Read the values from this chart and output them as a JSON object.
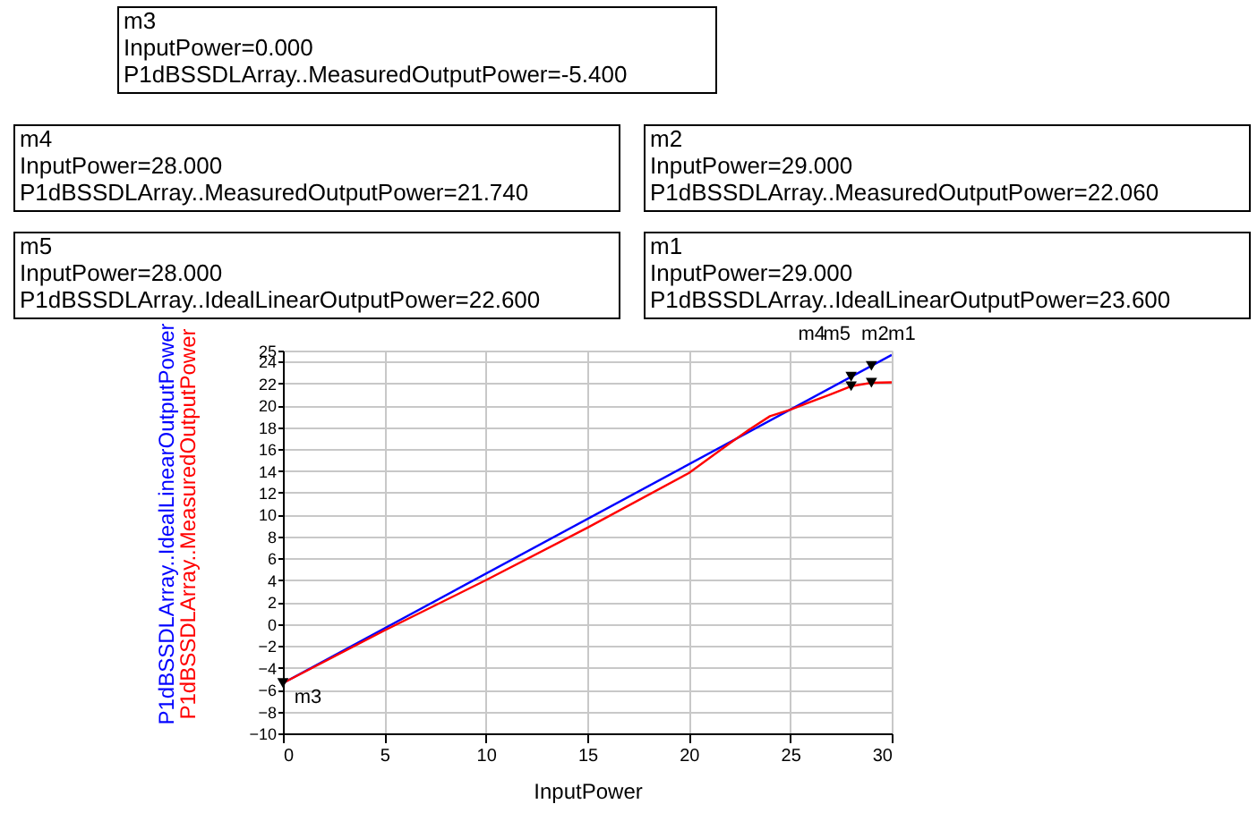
{
  "chart_data": {
    "type": "line",
    "xlabel": "InputPower",
    "series": [
      {
        "name": "P1dBSSDLArray..IdealLinearOutputPower",
        "color": "#0000ff",
        "x": [
          0,
          30
        ],
        "values": [
          -5.4,
          24.6
        ]
      },
      {
        "name": "P1dBSSDLArray..MeasuredOutputPower",
        "color": "#ff0000",
        "x": [
          0,
          5,
          10,
          15,
          20,
          22,
          23,
          24,
          25,
          26,
          27,
          28,
          29,
          30
        ],
        "values": [
          -5.4,
          -0.6,
          4.0,
          8.8,
          13.8,
          16.5,
          17.8,
          19.0,
          19.6,
          20.3,
          21.0,
          21.74,
          22.06,
          22.1
        ]
      }
    ],
    "xlim": [
      0,
      30
    ],
    "xticks": [
      0,
      5,
      10,
      15,
      20,
      25,
      30
    ],
    "ylim": [
      -10,
      25
    ],
    "yticks": [
      -10,
      -8,
      -6,
      -4,
      -2,
      0,
      2,
      4,
      6,
      8,
      10,
      12,
      14,
      16,
      18,
      20,
      22,
      24,
      25
    ],
    "grid": true,
    "legend": false,
    "line_style": "solid",
    "annotations": [
      "m3\nInputPower=0.000\nP1dBSSDLArray..MeasuredOutputPower=-5.400",
      "m4\nInputPower=28.000\nP1dBSSDLArray..MeasuredOutputPower=21.740",
      "m2\nInputPower=29.000\nP1dBSSDLArray..MeasuredOutputPower=22.060",
      "m5\nInputPower=28.000\nP1dBSSDLArray..IdealLinearOutputPower=22.600",
      "m1\nInputPower=29.000\nP1dBSSDLArray..IdealLinearOutputPower=23.600",
      {
        "text": "m3",
        "x": 0,
        "y": -5.4
      },
      {
        "text": "m4",
        "x": 28,
        "y": 21.74
      },
      {
        "text": "m2",
        "x": 29,
        "y": 22.06
      },
      {
        "text": "m5",
        "x": 28,
        "y": 22.6
      },
      {
        "text": "m1",
        "x": 29,
        "y": 23.6
      }
    ]
  }
}
